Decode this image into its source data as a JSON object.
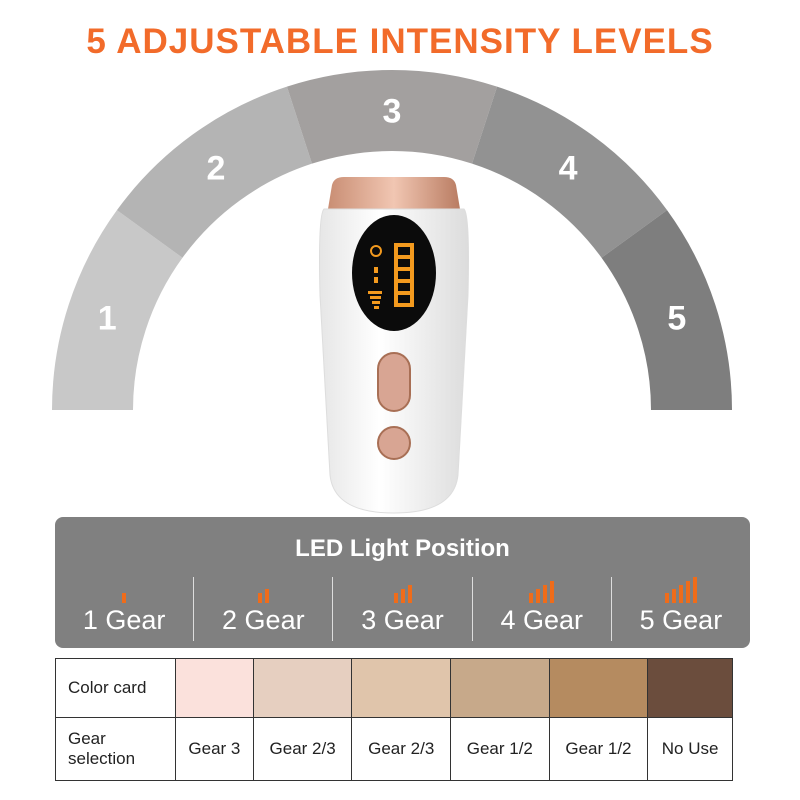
{
  "title": "5 ADJUSTABLE INTENSITY LEVELS",
  "arc": {
    "levels": [
      "1",
      "2",
      "3",
      "4",
      "5"
    ],
    "colors": [
      "#c8c8c8",
      "#b4b4b4",
      "#a3a09f",
      "#929292",
      "#7e7e7e"
    ]
  },
  "device": {
    "accent_color": "#e6b49e",
    "display_color": "#f39a1e"
  },
  "led_panel": {
    "title": "LED Light Position",
    "gears": [
      {
        "label": "1 Gear",
        "bars": 1
      },
      {
        "label": "2 Gear",
        "bars": 2
      },
      {
        "label": "3 Gear",
        "bars": 3
      },
      {
        "label": "4 Gear",
        "bars": 4
      },
      {
        "label": "5 Gear",
        "bars": 5
      }
    ]
  },
  "table": {
    "row1_header": "Color card",
    "row2_header": "Gear selection",
    "columns": [
      {
        "color": "#fbe1dc",
        "gear": "Gear 3"
      },
      {
        "color": "#e6cfc0",
        "gear": "Gear 2/3"
      },
      {
        "color": "#e0c5ab",
        "gear": "Gear 2/3"
      },
      {
        "color": "#c7a98a",
        "gear": "Gear 1/2"
      },
      {
        "color": "#b58b60",
        "gear": "Gear 1/2"
      },
      {
        "color": "#6b4d3d",
        "gear": "No Use"
      }
    ]
  }
}
